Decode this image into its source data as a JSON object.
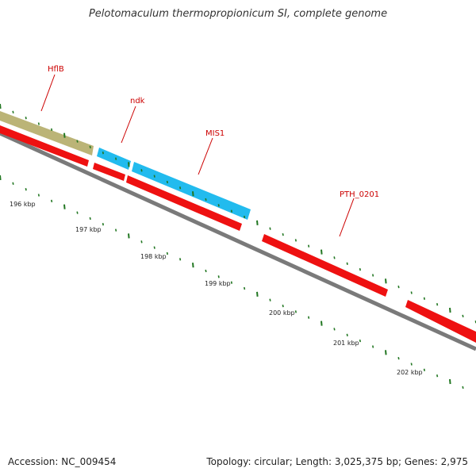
{
  "title": "Pelotomaculum thermopropionicum SI, complete genome",
  "footer": {
    "accession": "Accession: NC_009454",
    "summary": "Topology: circular; Length: 3,025,375 bp; Genes: 2,975"
  },
  "gene_labels": [
    "HflB",
    "ndk",
    "MIS1",
    "PTH_0201"
  ],
  "kbp_labels": [
    "196 kbp",
    "197 kbp",
    "198 kbp",
    "199 kbp",
    "200 kbp",
    "201 kbp",
    "202 kbp"
  ],
  "colors": {
    "backbone": "#888888",
    "forward_gene": "#ee1111",
    "blue_gene": "#22bbee",
    "olive_gene": "#bbb477",
    "tick": "#227722",
    "label": "#cc0000"
  }
}
